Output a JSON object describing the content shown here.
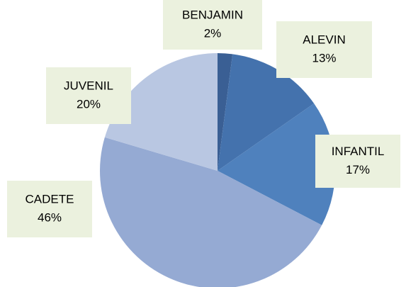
{
  "chart_data": {
    "type": "pie",
    "categories": [
      "BENJAMIN",
      "ALEVIN",
      "INFANTIL",
      "CADETE",
      "JUVENIL"
    ],
    "values": [
      2,
      13,
      17,
      46,
      20
    ],
    "value_labels": [
      "2%",
      "13%",
      "17%",
      "46%",
      "20%"
    ],
    "colors": [
      "#3a5f94",
      "#4472ad",
      "#4f81bd",
      "#95aad3",
      "#b9c7e2"
    ]
  }
}
